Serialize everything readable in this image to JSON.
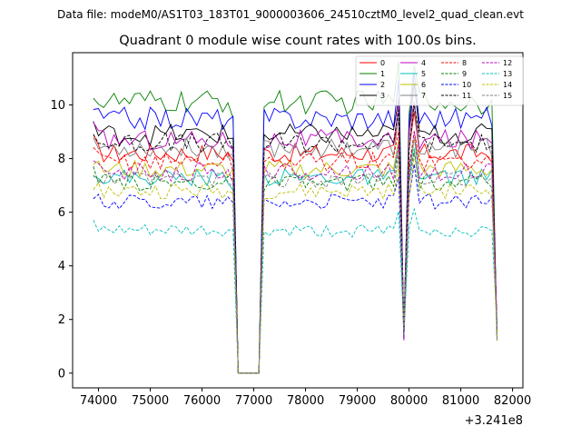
{
  "figure": {
    "suptitle": "Data file: modeM0/AS1T03_183T01_9000003606_24510cztM0_level2_quad_clean.evt"
  },
  "chart_data": {
    "type": "line",
    "title": "Quadrant 0 module wise count rates with 100.0s bins.",
    "xlabel": "",
    "ylabel": "",
    "offset_text": "+3.241e8",
    "xlim": [
      73500,
      82200
    ],
    "ylim": [
      -0.55,
      11.95
    ],
    "xticks": [
      74000,
      75000,
      76000,
      77000,
      78000,
      79000,
      80000,
      81000,
      82000
    ],
    "xtick_labels": [
      "74000",
      "75000",
      "76000",
      "77000",
      "78000",
      "79000",
      "80000",
      "81000",
      "82000"
    ],
    "yticks": [
      0,
      2,
      4,
      6,
      8,
      10
    ],
    "ytick_labels": [
      "0",
      "2",
      "4",
      "6",
      "8",
      "10"
    ],
    "grid": false,
    "legend_position": "top-right",
    "legend_columns": 4,
    "series": [
      {
        "name": "0",
        "color": "#ff0000",
        "dash": "solid",
        "level": 8.2
      },
      {
        "name": "1",
        "color": "#008000",
        "dash": "solid",
        "level": 10.1
      },
      {
        "name": "2",
        "color": "#0000ff",
        "dash": "solid",
        "level": 9.5
      },
      {
        "name": "3",
        "color": "#000000",
        "dash": "solid",
        "level": 8.9
      },
      {
        "name": "4",
        "color": "#bf00bf",
        "dash": "solid",
        "level": 8.7
      },
      {
        "name": "5",
        "color": "#00bfbf",
        "dash": "solid",
        "level": 7.3
      },
      {
        "name": "6",
        "color": "#bfbf00",
        "dash": "solid",
        "level": 7.6
      },
      {
        "name": "7",
        "color": "#808080",
        "dash": "solid",
        "level": 8.4
      },
      {
        "name": "8",
        "color": "#ff0000",
        "dash": "dashed",
        "level": 7.9
      },
      {
        "name": "9",
        "color": "#008000",
        "dash": "dashed",
        "level": 7.1
      },
      {
        "name": "10",
        "color": "#0000ff",
        "dash": "dashed",
        "level": 6.4
      },
      {
        "name": "11",
        "color": "#000000",
        "dash": "dashed",
        "level": 8.6
      },
      {
        "name": "12",
        "color": "#bf00bf",
        "dash": "dashed",
        "level": 7.5
      },
      {
        "name": "13",
        "color": "#00bfbf",
        "dash": "dashed",
        "level": 5.3
      },
      {
        "name": "14",
        "color": "#bfbf00",
        "dash": "dashed",
        "level": 6.8
      },
      {
        "name": "15",
        "color": "#808080",
        "dash": "dashed",
        "level": 7.2
      }
    ],
    "time_profile": {
      "x_start": 73900,
      "x_end": 81700,
      "bin": 100,
      "zero_start": 76700,
      "zero_end": 77100,
      "dips": [
        {
          "x": 79900,
          "value": 1.5
        },
        {
          "x": 81700,
          "value": 1.5
        }
      ],
      "peaks": [
        {
          "x": 79800,
          "factor": 1.12
        },
        {
          "x": 80100,
          "factor": 1.18
        }
      ]
    }
  }
}
